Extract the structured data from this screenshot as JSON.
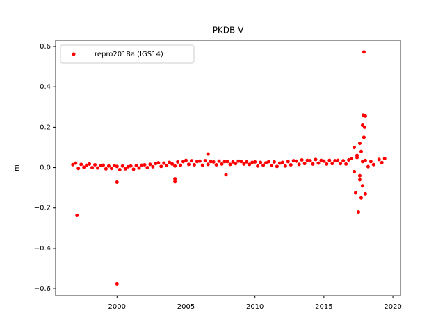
{
  "chart_data": {
    "type": "scatter",
    "title": "PKDB V",
    "y_label": "m",
    "xlim": [
      1995.55,
      2020.55
    ],
    "xticks": [
      2000,
      2005,
      2010,
      2015,
      2020
    ],
    "ylim": [
      -0.634,
      0.631
    ],
    "yticks": [
      {
        "value": -0.6,
        "label": "−0.6"
      },
      {
        "value": -0.4,
        "label": "−0.4"
      },
      {
        "value": -0.2,
        "label": "−0.2"
      },
      {
        "value": 0,
        "label": "0.0"
      },
      {
        "value": 0.2,
        "label": "0.2"
      },
      {
        "value": 0.4,
        "label": "0.4"
      },
      {
        "value": 0.6,
        "label": "0.6"
      }
    ],
    "legend": "upper left",
    "series": [
      {
        "name": "repro2018a (IGS14)",
        "color": "#ff0000",
        "x": [
          1996.8,
          1997.0,
          1997.2,
          1997.4,
          1997.6,
          1997.8,
          1998.0,
          1998.2,
          1998.4,
          1998.6,
          1998.8,
          1999.0,
          1999.2,
          1999.4,
          1999.6,
          1999.8,
          2000.0,
          2000.2,
          2000.4,
          2000.6,
          2000.8,
          2001.0,
          2001.2,
          2001.4,
          2001.6,
          2001.8,
          2002.0,
          2002.2,
          2002.4,
          2002.6,
          2002.8,
          2003.0,
          2003.2,
          2003.4,
          2003.6,
          2003.8,
          2004.0,
          2004.2,
          2004.4,
          2004.6,
          2004.8,
          2005.0,
          2005.2,
          2005.4,
          2005.6,
          2005.8,
          2006.0,
          2006.2,
          2006.4,
          2006.6,
          2006.8,
          2007.0,
          2007.2,
          2007.4,
          2007.6,
          2007.8,
          2008.0,
          2008.2,
          2008.4,
          2008.6,
          2008.8,
          2009.0,
          2009.2,
          2009.4,
          2009.6,
          2009.8,
          2010.0,
          2010.2,
          2010.4,
          2010.6,
          2010.8,
          2011.0,
          2011.2,
          2011.4,
          2011.6,
          2011.8,
          2012.0,
          2012.2,
          2012.4,
          2012.6,
          2012.8,
          2013.0,
          2013.2,
          2013.4,
          2013.6,
          2013.8,
          2014.0,
          2014.2,
          2014.4,
          2014.6,
          2014.8,
          2015.0,
          2015.2,
          2015.4,
          2015.6,
          2015.8,
          2016.0,
          2016.2,
          2016.4,
          2016.6,
          2016.8,
          2017.0,
          2017.2,
          2017.4,
          2017.6,
          2017.8,
          2018.0,
          2018.2,
          2018.4,
          2018.6,
          2019.0,
          2019.2,
          2019.4,
          1997.1,
          2000.0,
          2000.0,
          2004.2,
          2004.2,
          2006.6,
          2007.9,
          2017.2,
          2017.3,
          2017.5,
          2017.7,
          2017.8,
          2017.85,
          2017.9,
          2017.95,
          2018.0,
          2018.0,
          2017.6,
          2017.7,
          2017.4,
          2017.9,
          2017.6,
          2017.8
        ],
        "values": [
          0.015,
          0.022,
          -0.004,
          0.016,
          0.002,
          0.012,
          0.018,
          0.0,
          0.014,
          -0.002,
          0.01,
          0.012,
          -0.006,
          0.008,
          -0.004,
          0.01,
          0.006,
          -0.01,
          0.008,
          -0.006,
          0.004,
          0.008,
          -0.008,
          0.01,
          -0.002,
          0.012,
          0.014,
          0.0,
          0.016,
          0.004,
          0.02,
          0.024,
          0.006,
          0.022,
          0.01,
          0.026,
          0.018,
          0.008,
          0.028,
          0.012,
          0.03,
          0.036,
          0.016,
          0.034,
          0.014,
          0.03,
          0.032,
          0.012,
          0.034,
          0.016,
          0.03,
          0.028,
          0.014,
          0.032,
          0.018,
          0.03,
          0.03,
          0.016,
          0.028,
          0.02,
          0.032,
          0.03,
          0.018,
          0.028,
          0.016,
          0.026,
          0.028,
          0.008,
          0.026,
          0.012,
          0.024,
          0.03,
          0.01,
          0.028,
          0.006,
          0.022,
          0.026,
          0.008,
          0.03,
          0.014,
          0.034,
          0.032,
          0.016,
          0.038,
          0.02,
          0.036,
          0.034,
          0.018,
          0.04,
          0.022,
          0.036,
          0.032,
          0.018,
          0.036,
          0.02,
          0.034,
          0.036,
          0.02,
          0.034,
          0.018,
          0.038,
          0.045,
          -0.02,
          0.06,
          -0.04,
          0.03,
          0.035,
          0.005,
          0.03,
          0.015,
          0.04,
          0.025,
          0.045,
          -0.237,
          -0.072,
          -0.577,
          -0.055,
          -0.07,
          0.067,
          -0.035,
          0.1,
          -0.125,
          -0.22,
          -0.15,
          0.21,
          0.26,
          0.573,
          0.2,
          0.255,
          -0.13,
          0.12,
          0.08,
          0.05,
          0.15,
          -0.06,
          -0.09
        ]
      }
    ]
  }
}
